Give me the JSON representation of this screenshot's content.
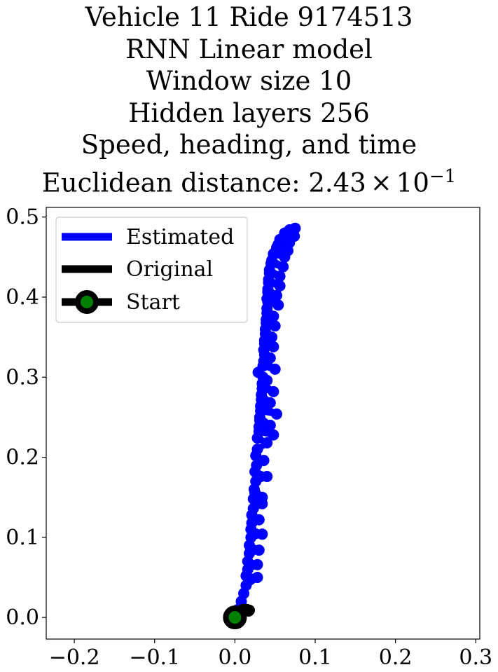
{
  "chart_data": {
    "type": "line",
    "title_lines": [
      "Vehicle 11 Ride 9174513",
      "RNN Linear model",
      "Window size 10",
      "Hidden layers 256",
      "Speed, heading, and time"
    ],
    "title_distance_prefix": "Euclidean distance: ",
    "title_distance_mantissa": "2.43",
    "title_distance_times": "×",
    "title_distance_base": "10",
    "title_distance_exponent": "−1",
    "xlabel": "",
    "ylabel": "",
    "xlim": [
      -0.235,
      0.305
    ],
    "ylim": [
      -0.027,
      0.512
    ],
    "x_ticks": [
      -0.2,
      -0.1,
      0.0,
      0.1,
      0.2,
      0.3
    ],
    "x_tick_labels": [
      "−0.2",
      "−0.1",
      "0.0",
      "0.1",
      "0.2",
      "0.3"
    ],
    "y_ticks": [
      0.0,
      0.1,
      0.2,
      0.3,
      0.4,
      0.5
    ],
    "y_tick_labels": [
      "0.0",
      "0.1",
      "0.2",
      "0.3",
      "0.4",
      "0.5"
    ],
    "grid": false,
    "legend_position": "top-left",
    "series": [
      {
        "name": "Estimated",
        "color": "#0000ff",
        "x": [
          0.0,
          0.004,
          0.008,
          0.011,
          0.014,
          0.028,
          0.014,
          0.016,
          0.028,
          0.016,
          0.018,
          0.03,
          0.018,
          0.02,
          0.034,
          0.02,
          0.021,
          0.03,
          0.021,
          0.023,
          0.034,
          0.023,
          0.025,
          0.034,
          0.024,
          0.026,
          0.04,
          0.025,
          0.027,
          0.036,
          0.026,
          0.028,
          0.04,
          0.028,
          0.03,
          0.048,
          0.03,
          0.031,
          0.044,
          0.031,
          0.032,
          0.052,
          0.032,
          0.033,
          0.044,
          0.033,
          0.034,
          0.048,
          0.034,
          0.035,
          0.04,
          0.029,
          0.035,
          0.05,
          0.036,
          0.037,
          0.044,
          0.036,
          0.037,
          0.048,
          0.037,
          0.038,
          0.046,
          0.038,
          0.039,
          0.05,
          0.039,
          0.04,
          0.048,
          0.04,
          0.041,
          0.054,
          0.04,
          0.041,
          0.052,
          0.041,
          0.042,
          0.056,
          0.042,
          0.043,
          0.056,
          0.043,
          0.045,
          0.06,
          0.046,
          0.048,
          0.062,
          0.05,
          0.052,
          0.066,
          0.054,
          0.056,
          0.068,
          0.06,
          0.062,
          0.074,
          0.068,
          0.075
        ],
        "y": [
          0.0,
          0.01,
          0.02,
          0.03,
          0.04,
          0.05,
          0.052,
          0.06,
          0.066,
          0.07,
          0.08,
          0.084,
          0.09,
          0.1,
          0.104,
          0.11,
          0.118,
          0.122,
          0.128,
          0.136,
          0.142,
          0.148,
          0.156,
          0.15,
          0.16,
          0.17,
          0.176,
          0.182,
          0.19,
          0.196,
          0.202,
          0.21,
          0.218,
          0.224,
          0.232,
          0.228,
          0.238,
          0.246,
          0.24,
          0.25,
          0.258,
          0.254,
          0.264,
          0.272,
          0.268,
          0.278,
          0.286,
          0.282,
          0.292,
          0.3,
          0.296,
          0.306,
          0.314,
          0.31,
          0.32,
          0.328,
          0.324,
          0.334,
          0.342,
          0.338,
          0.346,
          0.354,
          0.35,
          0.36,
          0.368,
          0.364,
          0.372,
          0.38,
          0.376,
          0.386,
          0.394,
          0.39,
          0.398,
          0.406,
          0.402,
          0.41,
          0.418,
          0.414,
          0.422,
          0.43,
          0.426,
          0.434,
          0.442,
          0.438,
          0.446,
          0.454,
          0.45,
          0.456,
          0.462,
          0.458,
          0.466,
          0.472,
          0.468,
          0.474,
          0.48,
          0.476,
          0.484,
          0.486
        ]
      },
      {
        "name": "Original",
        "color": "#000000",
        "x": [
          0.0,
          0.003,
          0.006,
          0.009,
          0.012,
          0.015,
          0.018,
          0.017,
          0.014,
          0.01
        ],
        "y": [
          0.0,
          0.003,
          0.006,
          0.008,
          0.01,
          0.01,
          0.009,
          0.008,
          0.009,
          0.01
        ]
      }
    ],
    "start": {
      "name": "Start",
      "x": 0.0,
      "y": 0.0,
      "marker_color": "#008000",
      "edge_color": "#000000"
    }
  }
}
